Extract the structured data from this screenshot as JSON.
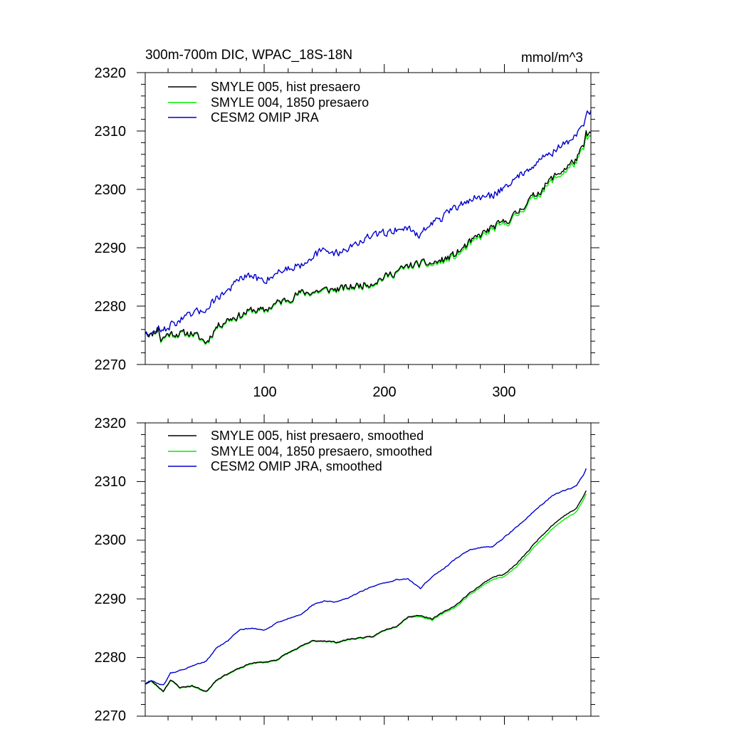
{
  "figure": {
    "title_left": "300m-700m DIC, WPAC_18S-18N",
    "title_right": "mmol/m^3"
  },
  "colors": {
    "hist": "#000000",
    "p1850": "#00ee00",
    "jra": "#0000cc"
  },
  "chart_data": [
    {
      "type": "line",
      "panel": "top",
      "title": "300m-700m DIC, WPAC_18S-18N",
      "units": "mmol/m^3",
      "xlim": [
        1,
        372
      ],
      "ylim": [
        2270,
        2320
      ],
      "yticks": [
        2270,
        2280,
        2290,
        2300,
        2310,
        2320
      ],
      "xticks": [
        100,
        200,
        300
      ],
      "x_tick_labels_shown": true,
      "smoothed": false,
      "legend": [
        "SMYLE 005, hist presaero",
        "SMYLE 004, 1850 presaero",
        "CESM2 OMIP JRA"
      ],
      "series": [
        {
          "name": "SMYLE 005, hist presaero",
          "color_key": "hist",
          "anchors_x": [
            1,
            6,
            12,
            14,
            20,
            30,
            40,
            52,
            60,
            70,
            80,
            90,
            100,
            110,
            120,
            130,
            140,
            150,
            160,
            170,
            180,
            190,
            200,
            210,
            220,
            230,
            240,
            250,
            260,
            270,
            280,
            290,
            300,
            310,
            320,
            330,
            340,
            350,
            360,
            366,
            368,
            372
          ],
          "anchors_y": [
            2275.8,
            2275,
            2276.4,
            2274.2,
            2275.3,
            2275.3,
            2275.4,
            2273.8,
            2276.4,
            2277.8,
            2278.4,
            2279.4,
            2279.2,
            2280.5,
            2281.2,
            2282.3,
            2282.4,
            2282.8,
            2282.9,
            2283.2,
            2283.6,
            2284.0,
            2285.0,
            2285.9,
            2286.9,
            2287.3,
            2287.3,
            2288.0,
            2289.0,
            2290.7,
            2292.2,
            2293.5,
            2294.4,
            2295.8,
            2298.1,
            2299.8,
            2302.0,
            2303.5,
            2305.2,
            2307.4,
            2309.5,
            2309.5
          ],
          "noise_amp": 0.9,
          "seed": 11
        },
        {
          "name": "SMYLE 004, 1850 presaero",
          "color_key": "p1850",
          "anchors_x": [
            1,
            6,
            12,
            14,
            20,
            30,
            40,
            52,
            60,
            70,
            80,
            90,
            100,
            110,
            120,
            130,
            140,
            150,
            160,
            170,
            180,
            190,
            200,
            210,
            220,
            230,
            240,
            250,
            260,
            270,
            280,
            290,
            300,
            310,
            320,
            330,
            340,
            350,
            360,
            366,
            368,
            372
          ],
          "anchors_y": [
            2275.8,
            2275,
            2276.2,
            2274.0,
            2275.1,
            2275.1,
            2275.2,
            2273.6,
            2276.2,
            2277.6,
            2278.2,
            2279.2,
            2279.0,
            2280.3,
            2281.0,
            2282.1,
            2282.2,
            2282.6,
            2282.7,
            2283.0,
            2283.4,
            2283.8,
            2284.8,
            2285.7,
            2286.7,
            2287.1,
            2287.0,
            2287.7,
            2288.6,
            2290.3,
            2291.8,
            2293.1,
            2294.0,
            2295.4,
            2297.7,
            2299.4,
            2301.5,
            2303.0,
            2304.7,
            2306.9,
            2308.9,
            2308.9
          ],
          "noise_amp": 0.9,
          "seed": 11
        },
        {
          "name": "CESM2 OMIP JRA",
          "color_key": "jra",
          "anchors_x": [
            1,
            6,
            12,
            14,
            20,
            30,
            40,
            52,
            60,
            70,
            80,
            90,
            100,
            110,
            120,
            130,
            140,
            150,
            160,
            170,
            180,
            190,
            200,
            210,
            220,
            230,
            240,
            250,
            260,
            270,
            280,
            290,
            300,
            310,
            320,
            330,
            340,
            350,
            360,
            366,
            368,
            372
          ],
          "anchors_y": [
            2275.8,
            2275,
            2276.3,
            2275.4,
            2276.5,
            2277.6,
            2278.5,
            2279.6,
            2281.4,
            2282.7,
            2284.7,
            2285.1,
            2284.3,
            2285.7,
            2286.5,
            2287.1,
            2288.6,
            2289.5,
            2289.1,
            2289.9,
            2291.1,
            2292.0,
            2292.5,
            2293.2,
            2293.3,
            2292.2,
            2294.3,
            2295.4,
            2296.9,
            2298.2,
            2298.6,
            2298.9,
            2300.5,
            2301.8,
            2303.7,
            2305.2,
            2306.4,
            2307.8,
            2309.1,
            2311.5,
            2313.2,
            2313.2
          ],
          "noise_amp": 0.95,
          "seed": 47
        }
      ]
    },
    {
      "type": "line",
      "panel": "bottom",
      "xlim": [
        1,
        372
      ],
      "ylim": [
        2270,
        2320
      ],
      "yticks": [
        2270,
        2280,
        2290,
        2300,
        2310,
        2320
      ],
      "xticks": [
        100,
        200,
        300
      ],
      "x_tick_labels_shown": false,
      "smoothed": true,
      "legend": [
        "SMYLE 005, hist presaero, smoothed",
        "SMYLE 004, 1850 presaero, smoothed",
        "CESM2 OMIP JRA, smoothed"
      ],
      "series": [
        {
          "name": "SMYLE 005, hist presaero, smoothed",
          "color_key": "hist",
          "anchors_x": [
            1,
            6,
            16,
            22,
            30,
            40,
            52,
            60,
            70,
            80,
            90,
            100,
            110,
            120,
            130,
            140,
            150,
            160,
            170,
            180,
            190,
            200,
            210,
            220,
            230,
            240,
            250,
            260,
            270,
            280,
            290,
            300,
            310,
            320,
            330,
            340,
            350,
            360,
            366,
            368
          ],
          "anchors_y": [
            2275.5,
            2276.0,
            2274.3,
            2276.2,
            2274.9,
            2275.2,
            2274.2,
            2276.2,
            2277.3,
            2278.2,
            2279.1,
            2279.2,
            2279.6,
            2280.8,
            2281.8,
            2282.8,
            2282.9,
            2282.6,
            2283.1,
            2283.4,
            2283.5,
            2284.7,
            2285.4,
            2287.0,
            2287.2,
            2286.6,
            2287.8,
            2289.0,
            2290.8,
            2292.3,
            2293.7,
            2294.2,
            2295.9,
            2298.2,
            2300.6,
            2302.6,
            2304.2,
            2305.4,
            2307.6,
            2308.4
          ],
          "noise_amp": 0.22,
          "seed": 23
        },
        {
          "name": "SMYLE 004, 1850 presaero, smoothed",
          "color_key": "p1850",
          "anchors_x": [
            1,
            6,
            16,
            22,
            30,
            40,
            52,
            60,
            70,
            80,
            90,
            100,
            110,
            120,
            130,
            140,
            150,
            160,
            170,
            180,
            190,
            200,
            210,
            220,
            230,
            240,
            250,
            260,
            270,
            280,
            290,
            300,
            310,
            320,
            330,
            340,
            350,
            360,
            366,
            368
          ],
          "anchors_y": [
            2275.5,
            2275.9,
            2274.2,
            2276.1,
            2274.8,
            2275.1,
            2274.1,
            2276.1,
            2277.2,
            2278.1,
            2279.0,
            2279.1,
            2279.5,
            2280.7,
            2281.7,
            2282.7,
            2282.8,
            2282.5,
            2283.0,
            2283.3,
            2283.4,
            2284.6,
            2285.3,
            2286.9,
            2287.0,
            2286.4,
            2287.6,
            2288.7,
            2290.5,
            2292.0,
            2293.3,
            2293.8,
            2295.4,
            2297.7,
            2300.0,
            2302.0,
            2303.6,
            2304.8,
            2307.0,
            2307.8
          ],
          "noise_amp": 0.22,
          "seed": 23
        },
        {
          "name": "CESM2 OMIP JRA, smoothed",
          "color_key": "jra",
          "anchors_x": [
            1,
            6,
            16,
            22,
            30,
            40,
            52,
            60,
            70,
            80,
            90,
            100,
            110,
            120,
            130,
            140,
            150,
            160,
            170,
            180,
            190,
            200,
            210,
            220,
            230,
            240,
            250,
            260,
            270,
            280,
            290,
            300,
            310,
            320,
            330,
            340,
            350,
            360,
            366,
            368
          ],
          "anchors_y": [
            2275.5,
            2276.1,
            2275.2,
            2277.3,
            2277.8,
            2278.5,
            2279.4,
            2281.5,
            2282.9,
            2284.8,
            2285.0,
            2284.6,
            2285.8,
            2286.6,
            2287.3,
            2288.9,
            2289.6,
            2289.4,
            2290.2,
            2291.2,
            2292.1,
            2292.6,
            2293.3,
            2293.4,
            2291.7,
            2293.9,
            2295.2,
            2296.9,
            2298.3,
            2298.8,
            2298.9,
            2300.5,
            2302.2,
            2304.0,
            2305.8,
            2307.6,
            2308.4,
            2309.3,
            2311.2,
            2312.2
          ],
          "noise_amp": 0.22,
          "seed": 61
        }
      ]
    }
  ]
}
